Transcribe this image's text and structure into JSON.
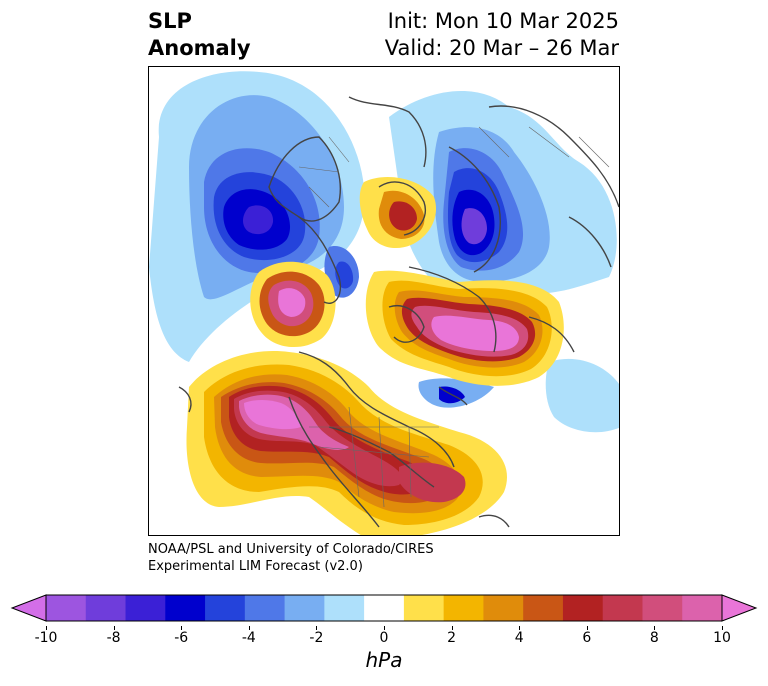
{
  "header": {
    "title_line1": "SLP",
    "title_line2": "Anomaly",
    "init_label": "Init: Mon 10 Mar 2025",
    "valid_label": "Valid: 20 Mar – 26 Mar"
  },
  "credit": {
    "line1": "NOAA/PSL and University of Colorado/CIRES",
    "line2": "Experimental LIM Forecast (v2.0)"
  },
  "colorbar": {
    "unit": "hPa",
    "ticks": [
      "-10",
      "-8",
      "-6",
      "-4",
      "-2",
      "0",
      "2",
      "4",
      "6",
      "8",
      "10"
    ],
    "levels": [
      -10,
      -9,
      -8,
      -7,
      -6,
      -5,
      -4,
      -3,
      -2,
      -1,
      1,
      2,
      3,
      4,
      5,
      6,
      7,
      8,
      9,
      10
    ],
    "colors": [
      "#d36ee8",
      "#9d55e0",
      "#6f3ddb",
      "#3b20d6",
      "#0000cd",
      "#2443db",
      "#4f78e8",
      "#78aef2",
      "#aee0fb",
      "#ffffff",
      "#ffe04a",
      "#f3b500",
      "#e08c0b",
      "#c95615",
      "#b22222",
      "#c3384f",
      "#d14e7c",
      "#dc62ac",
      "#e975d8"
    ]
  },
  "map": {
    "region": "Northern Hemisphere polar stereographic",
    "field": "Sea level pressure anomaly"
  }
}
